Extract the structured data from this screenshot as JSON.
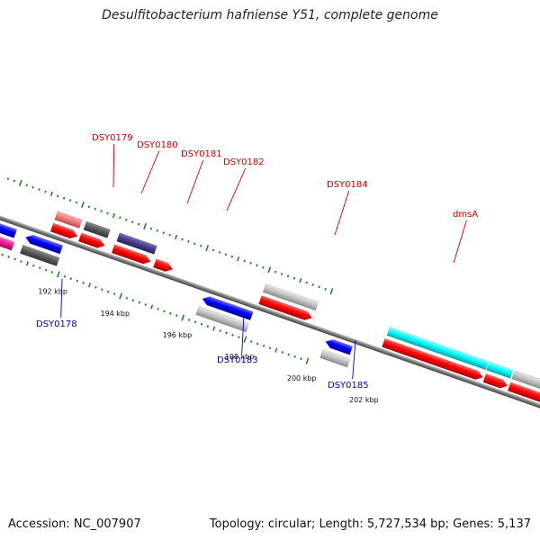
{
  "title": "Desulfitobacterium hafniense Y51, complete genome",
  "footer": {
    "accession": "Accession: NC_007907",
    "summary": "Topology: circular; Length: 5,727,534 bp; Genes: 5,137"
  },
  "colors": {
    "top_label": "#cc0000",
    "bottom_label": "#0000bb",
    "tick": "#2e7d32"
  },
  "ticks": [
    {
      "label": "192 kbp"
    },
    {
      "label": "194 kbp"
    },
    {
      "label": "196 kbp"
    },
    {
      "label": "198 kbp"
    },
    {
      "label": "200 kbp"
    },
    {
      "label": "202 kbp"
    }
  ],
  "gene_labels": [
    {
      "text": "DSY0179",
      "strand": "top"
    },
    {
      "text": "DSY0180",
      "strand": "top"
    },
    {
      "text": "DSY0181",
      "strand": "top"
    },
    {
      "text": "DSY0182",
      "strand": "top"
    },
    {
      "text": "DSY0184",
      "strand": "top"
    },
    {
      "text": "dmsA",
      "strand": "top"
    },
    {
      "text": "DSY0178",
      "strand": "bottom"
    },
    {
      "text": "DSY0183",
      "strand": "bottom"
    },
    {
      "text": "DSY0185",
      "strand": "bottom"
    }
  ]
}
